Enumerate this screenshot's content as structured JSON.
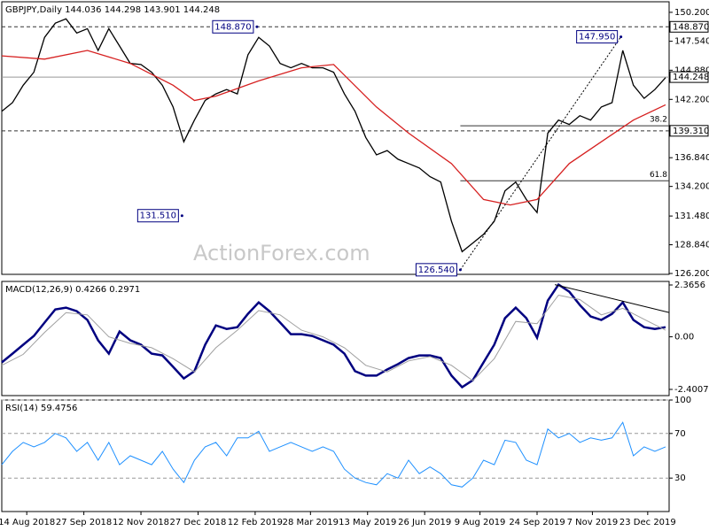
{
  "chart_data": [
    {
      "type": "line",
      "title": "GBPJPY,Daily  144.036 144.298 143.901 144.248",
      "watermark": "ActionForex.com",
      "xlim": [
        0,
        374
      ],
      "ylim": [
        126.12,
        151.17
      ],
      "yticks": [
        {
          "value": 150.2,
          "label": "150.200"
        },
        {
          "value": 147.54,
          "label": "147.540"
        },
        {
          "value": 144.88,
          "label": "144.880"
        },
        {
          "value": 142.2,
          "label": "142.200"
        },
        {
          "value": 136.84,
          "label": "136.840"
        },
        {
          "value": 134.2,
          "label": "134.200"
        },
        {
          "value": 131.48,
          "label": "131.480"
        },
        {
          "value": 128.84,
          "label": "128.840"
        },
        {
          "value": 126.2,
          "label": "126.200"
        }
      ],
      "series": [
        {
          "color": "#000000",
          "x": [
            0,
            6,
            12,
            18,
            24,
            30,
            36,
            42,
            48,
            54,
            60,
            66,
            72,
            78,
            84,
            90,
            96,
            102,
            108,
            114,
            120,
            126,
            132,
            138,
            144,
            150,
            156,
            162,
            168,
            174,
            180,
            186,
            192,
            198,
            204,
            210,
            216,
            222,
            228,
            234,
            240,
            246,
            252,
            258,
            264,
            270,
            276,
            282,
            288,
            294,
            300,
            306,
            312,
            318,
            324,
            330,
            336,
            342,
            348,
            354,
            360,
            366,
            372
          ],
          "values": [
            141.1,
            141.9,
            143.5,
            144.7,
            147.9,
            149.2,
            149.6,
            148.3,
            148.7,
            146.7,
            148.7,
            147.1,
            145.5,
            145.4,
            144.7,
            143.5,
            141.5,
            138.3,
            140.3,
            142.1,
            142.7,
            143.1,
            142.7,
            146.3,
            147.9,
            147.1,
            145.5,
            145.1,
            145.5,
            145.1,
            145.1,
            144.7,
            142.7,
            141.1,
            138.7,
            137.1,
            137.5,
            136.7,
            136.3,
            135.9,
            135.1,
            134.6,
            131.0,
            128.2,
            129.0,
            129.8,
            131.0,
            133.8,
            134.6,
            133.0,
            131.8,
            139.1,
            140.3,
            139.9,
            140.7,
            140.3,
            141.5,
            141.9,
            146.7,
            143.5,
            142.3,
            143.1,
            144.2
          ]
        },
        {
          "color": "#d62020",
          "x": [
            0,
            24,
            48,
            72,
            96,
            108,
            120,
            144,
            168,
            186,
            210,
            228,
            252,
            270,
            285,
            300,
            318,
            336,
            354,
            372
          ],
          "values": [
            146.2,
            145.9,
            146.7,
            145.5,
            143.5,
            142.1,
            142.5,
            143.9,
            145.1,
            145.4,
            141.5,
            139.1,
            136.3,
            133.0,
            132.5,
            133.0,
            136.3,
            138.3,
            140.3,
            141.7
          ]
        }
      ],
      "levels": [
        {
          "value": 148.87,
          "label": "148.870",
          "style": "dashed"
        },
        {
          "value": 144.248,
          "label": "144.248",
          "style": "solid"
        },
        {
          "value": 139.31,
          "label": "139.310",
          "style": "dashed"
        }
      ],
      "fib": [
        {
          "level": 38.2,
          "value": 139.77,
          "x": 257
        },
        {
          "level": 61.8,
          "value": 134.72,
          "x": 257
        }
      ],
      "annotations": [
        {
          "x": 143,
          "value": 148.87,
          "label": "148.870"
        },
        {
          "x": 347,
          "value": 147.95,
          "label": "147.950"
        },
        {
          "x": 101,
          "value": 131.51,
          "label": "131.510"
        },
        {
          "x": 257,
          "value": 126.54,
          "label": "126.540"
        }
      ],
      "trendline": {
        "x": [
          257,
          347
        ],
        "values": [
          126.54,
          147.95
        ]
      }
    },
    {
      "type": "line",
      "title": "MACD(12,26,9) 0.4266 0.2971",
      "xlim": [
        0,
        374
      ],
      "ylim": [
        -2.683,
        2.527
      ],
      "yticks": [
        {
          "value": 2.3656,
          "label": "2.3656"
        },
        {
          "value": 0,
          "label": "0.00"
        },
        {
          "value": -2.4007,
          "label": "-2.4007"
        }
      ],
      "grid": false,
      "series": [
        {
          "color": "#000080",
          "width": 2.5,
          "x": [
            0,
            6,
            12,
            18,
            24,
            30,
            36,
            42,
            48,
            54,
            60,
            66,
            72,
            78,
            84,
            90,
            96,
            102,
            108,
            114,
            120,
            126,
            132,
            138,
            144,
            150,
            156,
            162,
            168,
            174,
            180,
            186,
            192,
            198,
            204,
            210,
            216,
            222,
            228,
            234,
            240,
            246,
            252,
            258,
            264,
            270,
            276,
            282,
            288,
            294,
            300,
            306,
            312,
            318,
            324,
            330,
            336,
            342,
            348,
            354,
            360,
            366,
            372
          ],
          "values": [
            -1.17,
            -0.77,
            -0.36,
            0.04,
            0.65,
            1.25,
            1.33,
            1.17,
            0.77,
            -0.16,
            -0.77,
            0.24,
            -0.16,
            -0.36,
            -0.77,
            -0.85,
            -1.37,
            -1.9,
            -1.57,
            -0.36,
            0.52,
            0.36,
            0.44,
            1.05,
            1.57,
            1.17,
            0.65,
            0.12,
            0.12,
            0.04,
            -0.16,
            -0.36,
            -0.77,
            -1.57,
            -1.77,
            -1.77,
            -1.49,
            -1.25,
            -0.97,
            -0.85,
            -0.85,
            -0.97,
            -1.77,
            -2.3,
            -1.98,
            -1.17,
            -0.36,
            0.85,
            1.33,
            0.85,
            -0.04,
            1.65,
            2.38,
            2.06,
            1.45,
            0.93,
            0.77,
            1.05,
            1.57,
            0.77,
            0.44,
            0.36,
            0.44
          ]
        },
        {
          "color": "#a0a0a0",
          "width": 1,
          "x": [
            0,
            12,
            24,
            36,
            48,
            60,
            72,
            84,
            96,
            108,
            120,
            132,
            144,
            156,
            168,
            180,
            192,
            204,
            216,
            228,
            240,
            252,
            264,
            276,
            288,
            300,
            312,
            324,
            336,
            348,
            360,
            372
          ],
          "values": [
            -1.3,
            -0.8,
            0.2,
            1.1,
            1.0,
            0.0,
            -0.3,
            -0.5,
            -1.0,
            -1.6,
            -0.5,
            0.3,
            1.2,
            1.0,
            0.3,
            0.0,
            -0.5,
            -1.3,
            -1.6,
            -1.1,
            -0.9,
            -1.3,
            -2.0,
            -1.0,
            0.7,
            0.6,
            1.9,
            1.7,
            1.0,
            1.3,
            0.8,
            0.3
          ]
        }
      ],
      "trendline": {
        "x": [
          310,
          374
        ],
        "values": [
          2.38,
          1.11
        ]
      }
    },
    {
      "type": "line",
      "title": "RSI(14) 59.4756",
      "xlim": [
        0,
        374
      ],
      "ylim": [
        0,
        100
      ],
      "yticks": [
        100,
        70,
        30
      ],
      "grid": true,
      "xticks": [
        {
          "value": 14,
          "label": "14 Aug 2018"
        },
        {
          "value": 46,
          "label": "27 Sep 2018"
        },
        {
          "value": 78,
          "label": "12 Nov 2018"
        },
        {
          "value": 110,
          "label": "27 Dec 2018"
        },
        {
          "value": 142,
          "label": "12 Feb 2019"
        },
        {
          "value": 173,
          "label": "28 Mar 2019"
        },
        {
          "value": 205,
          "label": "13 May 2019"
        },
        {
          "value": 237,
          "label": "26 Jun 2019"
        },
        {
          "value": 268,
          "label": "9 Aug 2019"
        },
        {
          "value": 300,
          "label": "24 Sep 2019"
        },
        {
          "value": 331,
          "label": "7 Nov 2019"
        },
        {
          "value": 362,
          "label": "23 Dec 2019"
        }
      ],
      "series": [
        {
          "color": "#1e90ff",
          "width": 1,
          "x": [
            0,
            6,
            12,
            18,
            24,
            30,
            36,
            42,
            48,
            54,
            60,
            66,
            72,
            78,
            84,
            90,
            96,
            102,
            108,
            114,
            120,
            126,
            132,
            138,
            144,
            150,
            156,
            162,
            168,
            174,
            180,
            186,
            192,
            198,
            204,
            210,
            216,
            222,
            228,
            234,
            240,
            246,
            252,
            258,
            264,
            270,
            276,
            282,
            288,
            294,
            300,
            306,
            312,
            318,
            324,
            330,
            336,
            342,
            348,
            354,
            360,
            366,
            372
          ],
          "values": [
            42,
            54,
            62,
            58,
            62,
            70,
            66,
            54,
            62,
            46,
            62,
            42,
            50,
            46,
            42,
            54,
            38,
            26,
            46,
            58,
            62,
            50,
            66,
            66,
            72,
            54,
            58,
            62,
            58,
            54,
            58,
            54,
            38,
            30,
            26,
            24,
            34,
            30,
            46,
            34,
            40,
            34,
            24,
            22,
            30,
            46,
            42,
            64,
            62,
            46,
            42,
            74,
            66,
            70,
            62,
            66,
            64,
            66,
            80,
            50,
            58,
            54,
            58
          ]
        }
      ]
    }
  ]
}
